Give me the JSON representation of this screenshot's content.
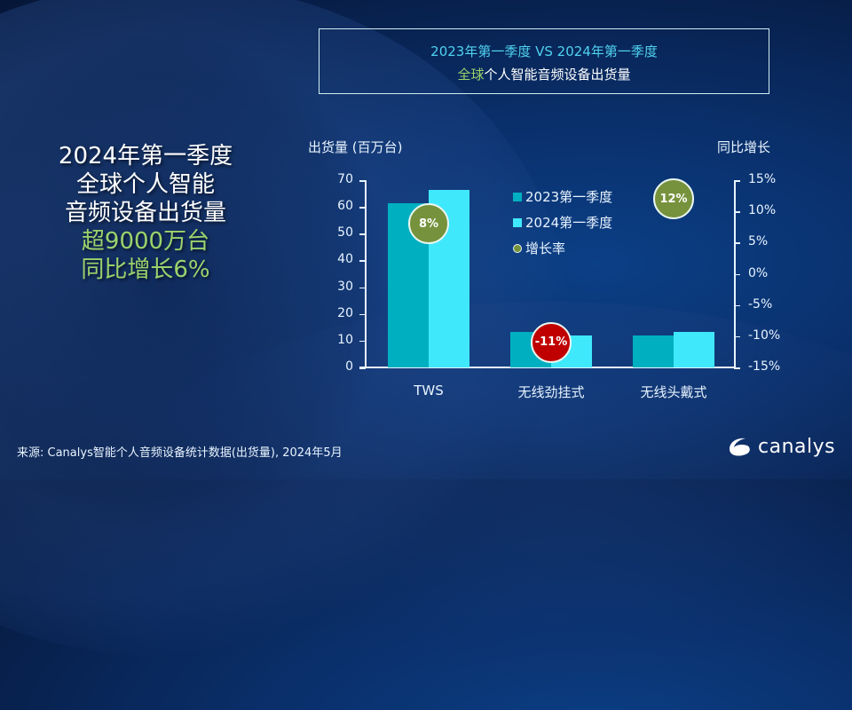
{
  "title_box": {
    "line1": "2023年第一季度 VS 2024年第一季度",
    "line2_accent": "全球",
    "line2_rest": "个人智能音频设备出货量"
  },
  "headline": {
    "line1": "2024年第一季度",
    "line2": "全球个人智能",
    "line3": "音频设备出货量",
    "line4": "超9000万台",
    "line5": "同比增长6%"
  },
  "left_axis": {
    "title": "出货量 (百万台)",
    "ticks": [
      "70",
      "60",
      "50",
      "40",
      "30",
      "20",
      "10",
      "0"
    ]
  },
  "right_axis": {
    "title": "同比增长",
    "ticks": [
      "15%",
      "10%",
      "5%",
      "0%",
      "-5%",
      "-10%",
      "-15%"
    ]
  },
  "legend": {
    "items": [
      {
        "label": "2023第一季度",
        "color": "#00B0C0"
      },
      {
        "label": "2024第一季度",
        "color": "#40E8FC"
      },
      {
        "label": "增长率",
        "color": "#76923C"
      }
    ]
  },
  "categories": [
    "TWS",
    "无线劲挂式",
    "无线头戴式"
  ],
  "bubbles": [
    {
      "label": "8%",
      "color": "#76923C"
    },
    {
      "label": "-11%",
      "color": "#C00000"
    },
    {
      "label": "12%",
      "color": "#76923C"
    }
  ],
  "footer": {
    "source": "来源: Canalys智能个人音频设备统计数据(出货量), 2024年5月",
    "logo_text": "canalys"
  },
  "chart_data": {
    "type": "bar",
    "title": "2023年第一季度 VS 2024年第一季度 全球个人智能音频设备出货量",
    "categories": [
      "TWS",
      "无线劲挂式",
      "无线头戴式"
    ],
    "series": [
      {
        "name": "2023第一季度",
        "values": [
          61.4,
          13.3,
          12.0
        ],
        "color": "#00B0C0",
        "axis": "left"
      },
      {
        "name": "2024第一季度",
        "values": [
          66.4,
          11.8,
          13.4
        ],
        "color": "#40E8FC",
        "axis": "left"
      },
      {
        "name": "增长率",
        "type": "scatter",
        "values": [
          8,
          -11,
          12
        ],
        "labels": [
          "8%",
          "-11%",
          "12%"
        ],
        "axis": "right"
      }
    ],
    "xlabel": "",
    "ylabel": "出货量 (百万台)",
    "ylabel_right": "同比增长",
    "ylim": [
      0,
      70
    ],
    "ylim_right": [
      -15,
      15
    ],
    "yticks": [
      0,
      10,
      20,
      30,
      40,
      50,
      60,
      70
    ],
    "yticks_right": [
      "-15%",
      "-10%",
      "-5%",
      "0%",
      "5%",
      "10%",
      "15%"
    ],
    "grid": false,
    "legend_position": "inside-top-center"
  }
}
